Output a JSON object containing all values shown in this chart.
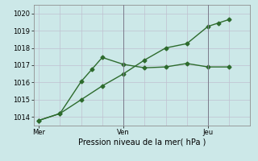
{
  "xlabel": "Pression niveau de la mer( hPa )",
  "background_color": "#cce8e8",
  "grid_color": "#c0c0d0",
  "line_color": "#2d6b2d",
  "x_ticks": [
    0,
    8,
    16
  ],
  "x_tick_labels": [
    "Mer",
    "Ven",
    "Jeu"
  ],
  "ylim": [
    1013.5,
    1020.5
  ],
  "yticks": [
    1014,
    1015,
    1016,
    1017,
    1018,
    1019,
    1020
  ],
  "series1_x": [
    0,
    2,
    4,
    5,
    6,
    8,
    10,
    12,
    14,
    16,
    18
  ],
  "series1_y": [
    1013.8,
    1014.2,
    1016.05,
    1016.75,
    1017.45,
    1017.05,
    1016.85,
    1016.9,
    1017.1,
    1016.9,
    1016.9
  ],
  "series2_x": [
    0,
    2,
    4,
    6,
    8,
    10,
    12,
    14,
    16,
    17,
    18
  ],
  "series2_y": [
    1013.8,
    1014.2,
    1015.0,
    1015.8,
    1016.5,
    1017.3,
    1018.0,
    1018.25,
    1019.25,
    1019.45,
    1019.65
  ],
  "vline_x": [
    8,
    16
  ],
  "xlim": [
    -0.5,
    19.5
  ],
  "marker": "D",
  "markersize": 2.5,
  "linewidth": 1.0,
  "tick_labelsize": 6,
  "xlabel_fontsize": 7
}
